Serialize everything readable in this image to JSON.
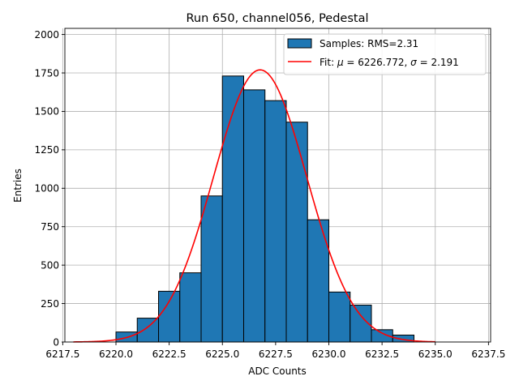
{
  "chart_data": {
    "type": "bar",
    "title": "Run 650, channel056, Pedestal",
    "xlabel": "ADC Counts",
    "ylabel": "Entries",
    "xlim": [
      6217.6,
      6237.6
    ],
    "ylim": [
      0,
      2040
    ],
    "xticks": [
      6217.5,
      6220.0,
      6222.5,
      6225.0,
      6227.5,
      6230.0,
      6232.5,
      6235.0,
      6237.5
    ],
    "xtick_labels": [
      "6217.5",
      "6220.0",
      "6222.5",
      "6225.0",
      "6227.5",
      "6230.0",
      "6232.5",
      "6235.0",
      "6237.5"
    ],
    "yticks": [
      0,
      250,
      500,
      750,
      1000,
      1250,
      1500,
      1750,
      2000
    ],
    "ytick_labels": [
      "0",
      "250",
      "500",
      "750",
      "1000",
      "1250",
      "1500",
      "1750",
      "2000"
    ],
    "grid": true,
    "legend_position": "top-right",
    "histogram": {
      "name": "Samples: RMS=2.31",
      "color": "#1f77b4",
      "edge_color": "#000000",
      "bins": [
        {
          "x0": 6220,
          "x1": 6221,
          "count": 65
        },
        {
          "x0": 6221,
          "x1": 6222,
          "count": 155
        },
        {
          "x0": 6222,
          "x1": 6223,
          "count": 330
        },
        {
          "x0": 6223,
          "x1": 6224,
          "count": 450
        },
        {
          "x0": 6224,
          "x1": 6225,
          "count": 950
        },
        {
          "x0": 6225,
          "x1": 6226,
          "count": 1730
        },
        {
          "x0": 6226,
          "x1": 6227,
          "count": 1640
        },
        {
          "x0": 6227,
          "x1": 6228,
          "count": 1570
        },
        {
          "x0": 6228,
          "x1": 6229,
          "count": 1430
        },
        {
          "x0": 6229,
          "x1": 6230,
          "count": 795
        },
        {
          "x0": 6230,
          "x1": 6231,
          "count": 325
        },
        {
          "x0": 6231,
          "x1": 6232,
          "count": 240
        },
        {
          "x0": 6232,
          "x1": 6233,
          "count": 80
        },
        {
          "x0": 6233,
          "x1": 6234,
          "count": 45
        }
      ]
    },
    "fit": {
      "name_prefix": "Fit: ",
      "mu_symbol": "μ",
      "mu_text": " = 6226.772, ",
      "sigma_symbol": "σ",
      "sigma_text": " = 2.191",
      "color": "#ff0000",
      "mu": 6226.772,
      "sigma": 2.191,
      "amplitude": 1770,
      "x_range": [
        6218.0,
        6235.0
      ]
    }
  }
}
